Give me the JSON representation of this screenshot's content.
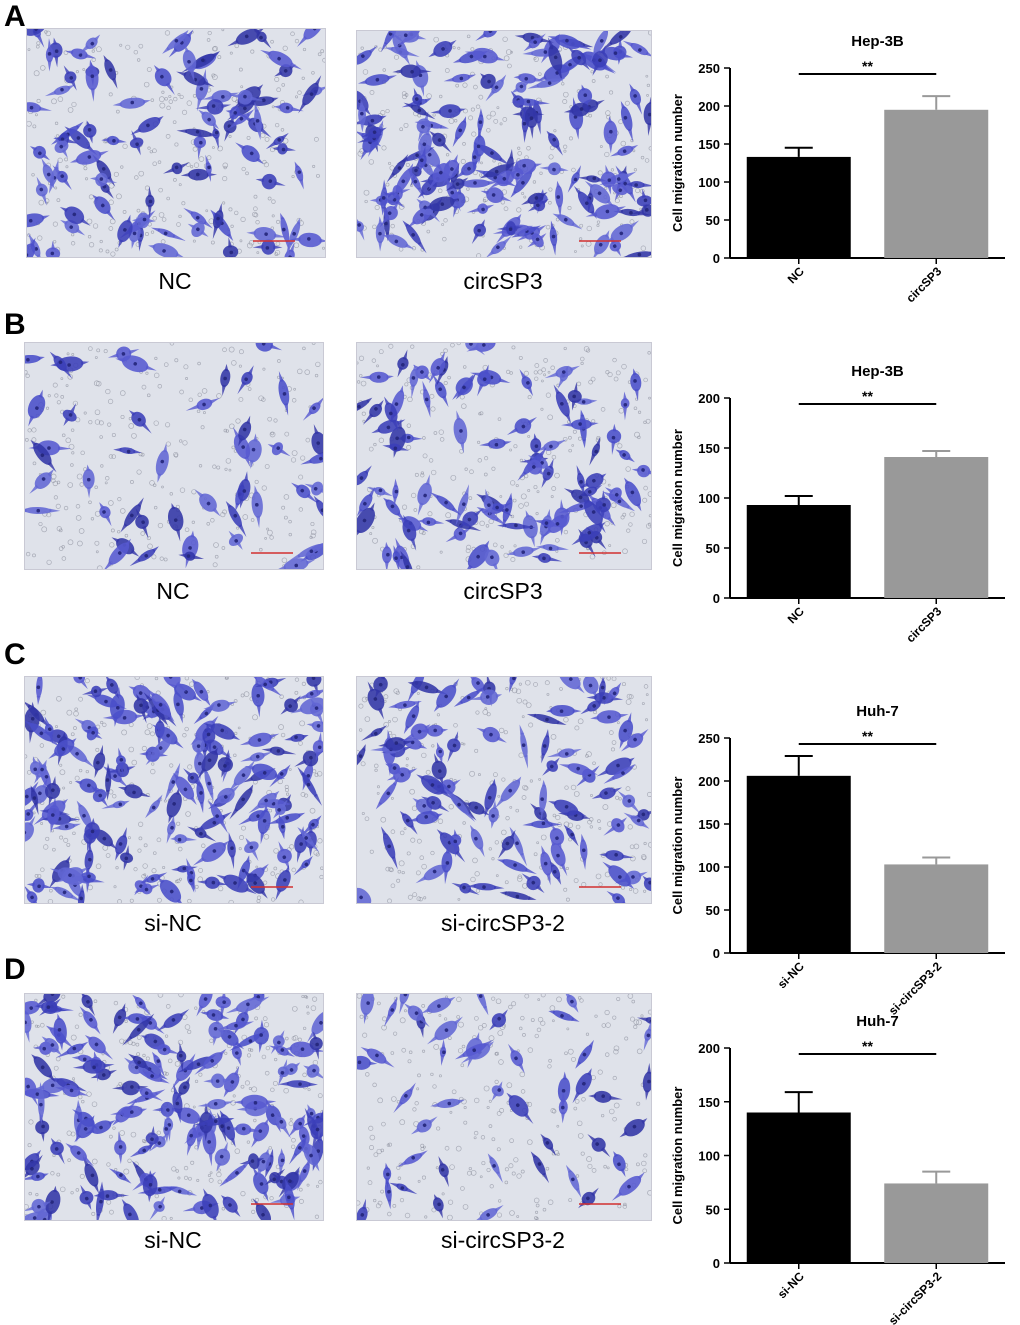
{
  "panels": [
    {
      "letter": "A",
      "images": [
        {
          "label": "NC",
          "density": "medium"
        },
        {
          "label": "circSP3",
          "density": "high"
        }
      ]
    },
    {
      "letter": "B",
      "images": [
        {
          "label": "NC",
          "density": "low"
        },
        {
          "label": "circSP3",
          "density": "medium"
        }
      ]
    },
    {
      "letter": "C",
      "images": [
        {
          "label": "si-NC",
          "density": "high"
        },
        {
          "label": "si-circSP3-2",
          "density": "medium"
        }
      ]
    },
    {
      "letter": "D",
      "images": [
        {
          "label": "si-NC",
          "density": "high"
        },
        {
          "label": "si-circSP3-2",
          "density": "low"
        }
      ]
    }
  ],
  "chart_data": [
    {
      "type": "bar",
      "title": "Hep-3B",
      "ylabel": "Cell migration number",
      "categories": [
        "NC",
        "circSP3"
      ],
      "values": [
        133,
        195
      ],
      "errors": [
        12,
        18
      ],
      "ylim": [
        0,
        250
      ],
      "yticks": [
        "0",
        "50",
        "100",
        "150",
        "200",
        "250"
      ],
      "colors": [
        "#000000",
        "#999999"
      ],
      "significance": "**"
    },
    {
      "type": "bar",
      "title": "Hep-3B",
      "ylabel": "Cell migration number",
      "categories": [
        "NC",
        "circSP3"
      ],
      "values": [
        93,
        141
      ],
      "errors": [
        9,
        6
      ],
      "ylim": [
        0,
        200
      ],
      "yticks": [
        "0",
        "50",
        "100",
        "150",
        "200"
      ],
      "colors": [
        "#000000",
        "#999999"
      ],
      "significance": "**"
    },
    {
      "type": "bar",
      "title": "Huh-7",
      "ylabel": "Cell migration number",
      "categories": [
        "si-NC",
        "si-circSP3-2"
      ],
      "values": [
        206,
        103
      ],
      "errors": [
        23,
        8
      ],
      "ylim": [
        0,
        250
      ],
      "yticks": [
        "0",
        "50",
        "100",
        "150",
        "200",
        "250"
      ],
      "colors": [
        "#000000",
        "#999999"
      ],
      "significance": "**"
    },
    {
      "type": "bar",
      "title": "Huh-7",
      "ylabel": "Cell migration number",
      "categories": [
        "si-NC",
        "si-circSP3-2"
      ],
      "values": [
        140,
        74
      ],
      "errors": [
        19,
        11
      ],
      "ylim": [
        0,
        200
      ],
      "yticks": [
        "0",
        "50",
        "100",
        "150",
        "200"
      ],
      "colors": [
        "#000000",
        "#999999"
      ],
      "significance": "**"
    }
  ]
}
